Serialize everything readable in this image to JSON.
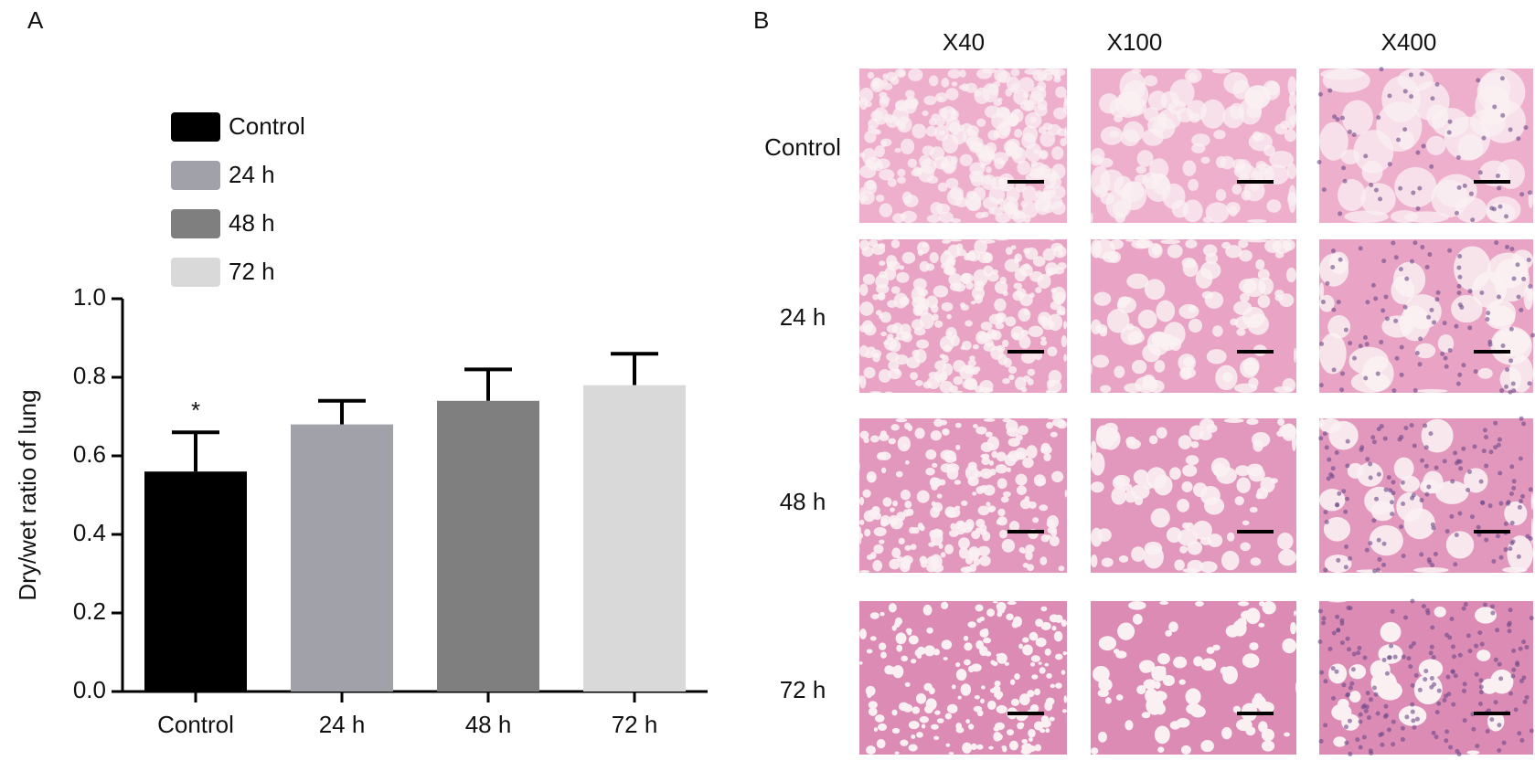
{
  "panel_labels": [
    "A",
    "B"
  ],
  "chart_data": {
    "type": "bar",
    "ylabel": "Dry/wet ratio of lung",
    "categories": [
      "Control",
      "24 h",
      "48 h",
      "72 h"
    ],
    "values": [
      0.56,
      0.68,
      0.74,
      0.78
    ],
    "errors": [
      0.1,
      0.06,
      0.08,
      0.08
    ],
    "colors": [
      "#000000",
      "#a1a1aa",
      "#7f7f7f",
      "#d9d9d9"
    ],
    "annotations": [
      {
        "text": "*",
        "category": 0
      }
    ],
    "ylim": [
      0,
      1
    ],
    "yticks": [
      {
        "value": 0,
        "label": "0.0"
      },
      0.2,
      0.4,
      0.6,
      0.8,
      {
        "value": 1,
        "label": "1.0"
      }
    ],
    "legend": "upper left",
    "grid": false
  },
  "micrographs": {
    "columns": [
      "X40",
      "X100",
      "X400"
    ],
    "rows": [
      "Control",
      "24 h",
      "48 h",
      "72 h"
    ]
  }
}
